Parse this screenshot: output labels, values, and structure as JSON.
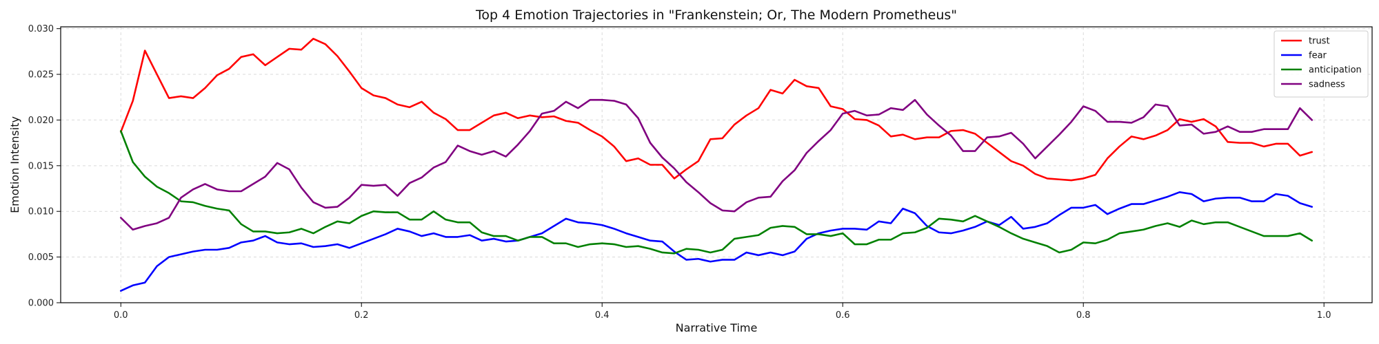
{
  "chart_data": {
    "type": "line",
    "title": "Top 4 Emotion Trajectories in \"Frankenstein; Or, The Modern Prometheus\"",
    "xlabel": "Narrative Time",
    "ylabel": "Emotion Intensity",
    "xlim": [
      -0.05,
      1.04
    ],
    "ylim": [
      0.0,
      0.0302
    ],
    "xticks": [
      0.0,
      0.2,
      0.4,
      0.6,
      0.8,
      1.0
    ],
    "xtick_labels": [
      "0.0",
      "0.2",
      "0.4",
      "0.6",
      "0.8",
      "1.0"
    ],
    "yticks": [
      0.0,
      0.005,
      0.01,
      0.015,
      0.02,
      0.025,
      0.03
    ],
    "ytick_labels": [
      "0.000",
      "0.005",
      "0.010",
      "0.015",
      "0.020",
      "0.025",
      "0.030"
    ],
    "grid": true,
    "legend": "top-right",
    "x_start": 0.0,
    "x_step": 0.01,
    "series": [
      {
        "name": "trust",
        "color": "#ff0000",
        "values": [
          0.0187,
          0.0221,
          0.0276,
          0.025,
          0.0224,
          0.0226,
          0.0224,
          0.0235,
          0.0249,
          0.0256,
          0.0269,
          0.0272,
          0.026,
          0.0269,
          0.0278,
          0.0277,
          0.0289,
          0.0283,
          0.027,
          0.0253,
          0.0235,
          0.0227,
          0.0224,
          0.0217,
          0.0214,
          0.022,
          0.0208,
          0.0201,
          0.0189,
          0.0189,
          0.0197,
          0.0205,
          0.0208,
          0.0202,
          0.0205,
          0.0203,
          0.0204,
          0.0199,
          0.0197,
          0.0189,
          0.0182,
          0.0171,
          0.0155,
          0.0158,
          0.0151,
          0.0151,
          0.0136,
          0.0146,
          0.0155,
          0.0179,
          0.018,
          0.0195,
          0.0205,
          0.0213,
          0.0233,
          0.0229,
          0.0244,
          0.0237,
          0.0235,
          0.0215,
          0.0212,
          0.0201,
          0.02,
          0.0194,
          0.0182,
          0.0184,
          0.0179,
          0.0181,
          0.0181,
          0.0188,
          0.0189,
          0.0185,
          0.0175,
          0.0165,
          0.0155,
          0.015,
          0.0141,
          0.0136,
          0.0135,
          0.0134,
          0.0136,
          0.014,
          0.0158,
          0.0171,
          0.0182,
          0.0179,
          0.0183,
          0.0189,
          0.0201,
          0.0198,
          0.0201,
          0.0193,
          0.0176,
          0.0175,
          0.0175,
          0.0171,
          0.0174,
          0.0174,
          0.0161,
          0.0165
        ]
      },
      {
        "name": "fear",
        "color": "#0000ff",
        "values": [
          0.0013,
          0.0019,
          0.0022,
          0.004,
          0.005,
          0.0053,
          0.0056,
          0.0058,
          0.0058,
          0.006,
          0.0066,
          0.0068,
          0.0073,
          0.0066,
          0.0064,
          0.0065,
          0.0061,
          0.0062,
          0.0064,
          0.006,
          0.0065,
          0.007,
          0.0075,
          0.0081,
          0.0078,
          0.0073,
          0.0076,
          0.0072,
          0.0072,
          0.0074,
          0.0068,
          0.007,
          0.0067,
          0.0068,
          0.0072,
          0.0076,
          0.0084,
          0.0092,
          0.0088,
          0.0087,
          0.0085,
          0.0081,
          0.0076,
          0.0072,
          0.0068,
          0.0067,
          0.0056,
          0.0047,
          0.0048,
          0.0045,
          0.0047,
          0.0047,
          0.0055,
          0.0052,
          0.0055,
          0.0052,
          0.0056,
          0.007,
          0.0076,
          0.0079,
          0.0081,
          0.0081,
          0.008,
          0.0089,
          0.0087,
          0.0103,
          0.0098,
          0.0084,
          0.0077,
          0.0076,
          0.0079,
          0.0083,
          0.0089,
          0.0085,
          0.0094,
          0.0081,
          0.0083,
          0.0087,
          0.0096,
          0.0104,
          0.0104,
          0.0107,
          0.0097,
          0.0103,
          0.0108,
          0.0108,
          0.0112,
          0.0116,
          0.0121,
          0.0119,
          0.0111,
          0.0114,
          0.0115,
          0.0115,
          0.0111,
          0.0111,
          0.0119,
          0.0117,
          0.0109,
          0.0105
        ]
      },
      {
        "name": "anticipation",
        "color": "#008000",
        "values": [
          0.0188,
          0.0154,
          0.0138,
          0.0127,
          0.012,
          0.0111,
          0.011,
          0.0106,
          0.0103,
          0.0101,
          0.0086,
          0.0078,
          0.0078,
          0.0076,
          0.0077,
          0.0081,
          0.0076,
          0.0083,
          0.0089,
          0.0087,
          0.0095,
          0.01,
          0.0099,
          0.0099,
          0.0091,
          0.0091,
          0.01,
          0.0091,
          0.0088,
          0.0088,
          0.0077,
          0.0073,
          0.0073,
          0.0068,
          0.0072,
          0.0072,
          0.0065,
          0.0065,
          0.0061,
          0.0064,
          0.0065,
          0.0064,
          0.0061,
          0.0062,
          0.0059,
          0.0055,
          0.0054,
          0.0059,
          0.0058,
          0.0055,
          0.0058,
          0.007,
          0.0072,
          0.0074,
          0.0082,
          0.0084,
          0.0083,
          0.0075,
          0.0075,
          0.0073,
          0.0076,
          0.0064,
          0.0064,
          0.0069,
          0.0069,
          0.0076,
          0.0077,
          0.0082,
          0.0092,
          0.0091,
          0.0089,
          0.0095,
          0.0089,
          0.0083,
          0.0076,
          0.007,
          0.0066,
          0.0062,
          0.0055,
          0.0058,
          0.0066,
          0.0065,
          0.0069,
          0.0076,
          0.0078,
          0.008,
          0.0084,
          0.0087,
          0.0083,
          0.009,
          0.0086,
          0.0088,
          0.0088,
          0.0083,
          0.0078,
          0.0073,
          0.0073,
          0.0073,
          0.0076,
          0.0068
        ]
      },
      {
        "name": "sadness",
        "color": "#800080",
        "values": [
          0.0093,
          0.008,
          0.0084,
          0.0087,
          0.0093,
          0.0115,
          0.0124,
          0.013,
          0.0124,
          0.0122,
          0.0122,
          0.013,
          0.0138,
          0.0153,
          0.0146,
          0.0126,
          0.011,
          0.0104,
          0.0105,
          0.0115,
          0.0129,
          0.0128,
          0.0129,
          0.0117,
          0.0131,
          0.0137,
          0.0148,
          0.0154,
          0.0172,
          0.0166,
          0.0162,
          0.0166,
          0.016,
          0.0173,
          0.0188,
          0.0207,
          0.021,
          0.022,
          0.0213,
          0.0222,
          0.0222,
          0.0221,
          0.0217,
          0.0202,
          0.0175,
          0.0159,
          0.0147,
          0.0132,
          0.0121,
          0.0109,
          0.0101,
          0.01,
          0.011,
          0.0115,
          0.0116,
          0.0133,
          0.0145,
          0.0164,
          0.0177,
          0.0189,
          0.0207,
          0.021,
          0.0205,
          0.0206,
          0.0213,
          0.0211,
          0.0222,
          0.0206,
          0.0194,
          0.0183,
          0.0166,
          0.0166,
          0.0181,
          0.0182,
          0.0186,
          0.0174,
          0.0158,
          0.0171,
          0.0184,
          0.0198,
          0.0215,
          0.021,
          0.0198,
          0.0198,
          0.0197,
          0.0203,
          0.0217,
          0.0215,
          0.0194,
          0.0195,
          0.0185,
          0.0187,
          0.0193,
          0.0187,
          0.0187,
          0.019,
          0.019,
          0.019,
          0.0213,
          0.02
        ]
      }
    ]
  }
}
